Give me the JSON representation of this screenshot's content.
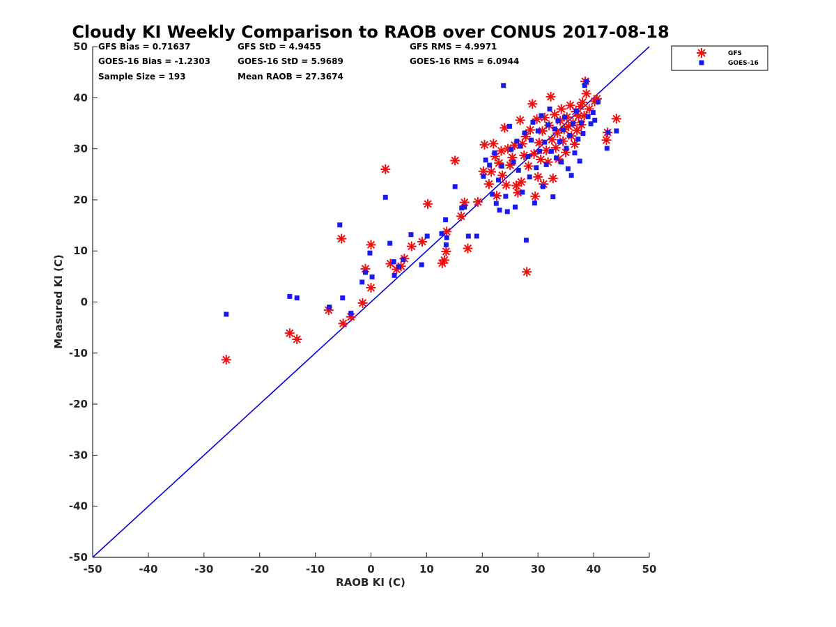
{
  "chart_data": {
    "type": "scatter",
    "title": "Cloudy KI Weekly Comparison to RAOB over CONUS 2017-08-18",
    "xlabel": "RAOB KI (C)",
    "ylabel": "Measured KI (C)",
    "xlim": [
      -50,
      50
    ],
    "ylim": [
      -50,
      50
    ],
    "xticks": [
      -50,
      -40,
      -30,
      -20,
      -10,
      0,
      10,
      20,
      30,
      40,
      50
    ],
    "yticks": [
      -50,
      -40,
      -30,
      -20,
      -10,
      0,
      10,
      20,
      30,
      40,
      50
    ],
    "xtick_labels": [
      "-50",
      "-40",
      "-30",
      "-20",
      "-10",
      "0",
      "10",
      "20",
      "30",
      "40",
      "50"
    ],
    "ytick_labels": [
      "-50",
      "-40",
      "-30",
      "-20",
      "-10",
      "0",
      "10",
      "20",
      "30",
      "40",
      "50"
    ],
    "grid": false,
    "legend_position": "outside top-right",
    "stats": [
      [
        "GFS Bias = 0.71637",
        "GFS StD = 4.9455",
        "GFS RMS = 4.9971"
      ],
      [
        "GOES-16 Bias = -1.2303",
        "GOES-16 StD = 5.9689",
        "GOES-16 RMS = 6.0944"
      ],
      [
        "Sample Size = 193",
        "Mean RAOB = 27.3674",
        ""
      ]
    ],
    "reference_line": {
      "x": [
        -50,
        50
      ],
      "y": [
        -50,
        50
      ],
      "color": "#0000dd"
    },
    "series": [
      {
        "name": "GFS",
        "marker": "asterisk",
        "color": "#ee1111",
        "points": [
          [
            -26,
            -11.3
          ],
          [
            -14.6,
            -6.1
          ],
          [
            -13.3,
            -7.3
          ],
          [
            -7.6,
            -1.6
          ],
          [
            -5.3,
            12.4
          ],
          [
            -5,
            -4.2
          ],
          [
            -3.6,
            -2.9
          ],
          [
            -1.5,
            -0.2
          ],
          [
            -1,
            6.5
          ],
          [
            0,
            11.2
          ],
          [
            0,
            2.8
          ],
          [
            2.6,
            26
          ],
          [
            3.5,
            7.5
          ],
          [
            4.6,
            6.4
          ],
          [
            5.4,
            7
          ],
          [
            6,
            8.5
          ],
          [
            7.3,
            10.9
          ],
          [
            9.2,
            11.8
          ],
          [
            10.2,
            19.2
          ],
          [
            12.8,
            7.6
          ],
          [
            13.2,
            8.2
          ],
          [
            13.5,
            9.9
          ],
          [
            13.6,
            13.8
          ],
          [
            15.1,
            27.7
          ],
          [
            16.2,
            16.8
          ],
          [
            16.8,
            19.5
          ],
          [
            17.4,
            10.5
          ],
          [
            19.2,
            19.6
          ],
          [
            20.2,
            25.6
          ],
          [
            20.4,
            30.8
          ],
          [
            21.2,
            23.1
          ],
          [
            21.6,
            25.5
          ],
          [
            22,
            31
          ],
          [
            22.3,
            28.5
          ],
          [
            22.6,
            20.8
          ],
          [
            23,
            27.2
          ],
          [
            23.4,
            29.6
          ],
          [
            23.6,
            24.8
          ],
          [
            24,
            34.1
          ],
          [
            24.3,
            22.9
          ],
          [
            24.6,
            30
          ],
          [
            25,
            26.8
          ],
          [
            25.4,
            28.3
          ],
          [
            25.8,
            30.7
          ],
          [
            26.1,
            22.8
          ],
          [
            26.4,
            21.4
          ],
          [
            26.8,
            35.6
          ],
          [
            27,
            23.5
          ],
          [
            27.2,
            31
          ],
          [
            27.5,
            28.7
          ],
          [
            27.8,
            32.4
          ],
          [
            28,
            5.9
          ],
          [
            28.3,
            26.6
          ],
          [
            28.6,
            33.7
          ],
          [
            29,
            38.8
          ],
          [
            29.3,
            29
          ],
          [
            29.5,
            20.7
          ],
          [
            29.8,
            35.8
          ],
          [
            30,
            24.5
          ],
          [
            30.2,
            31.2
          ],
          [
            30.5,
            27.9
          ],
          [
            30.8,
            33.5
          ],
          [
            31,
            23.1
          ],
          [
            31.2,
            36.1
          ],
          [
            31.5,
            29.7
          ],
          [
            31.8,
            27.4
          ],
          [
            32,
            34.6
          ],
          [
            32.3,
            40.2
          ],
          [
            32.5,
            31.8
          ],
          [
            32.7,
            24.2
          ],
          [
            33,
            36.7
          ],
          [
            33.2,
            30.2
          ],
          [
            33.5,
            33.1
          ],
          [
            33.7,
            28
          ],
          [
            34,
            35.5
          ],
          [
            34.2,
            37.8
          ],
          [
            34.5,
            31.5
          ],
          [
            34.7,
            33.8
          ],
          [
            35,
            29.3
          ],
          [
            35.2,
            36.2
          ],
          [
            35.5,
            34.4
          ],
          [
            35.8,
            38.5
          ],
          [
            36,
            32.5
          ],
          [
            36.3,
            35.1
          ],
          [
            36.6,
            30.9
          ],
          [
            36.8,
            37.3
          ],
          [
            37,
            33.6
          ],
          [
            37.3,
            36.4
          ],
          [
            37.6,
            38.3
          ],
          [
            37.8,
            34.7
          ],
          [
            38,
            39.1
          ],
          [
            38.3,
            36.5
          ],
          [
            38.5,
            43.2
          ],
          [
            38.7,
            40.8
          ],
          [
            39.2,
            37.8
          ],
          [
            40.2,
            39.3
          ],
          [
            40.6,
            39.8
          ],
          [
            42.3,
            31.7
          ],
          [
            42.5,
            33.2
          ],
          [
            44.1,
            35.9
          ]
        ]
      },
      {
        "name": "GOES-16",
        "marker": "square",
        "color": "#1a1aee",
        "points": [
          [
            -26,
            -2.4
          ],
          [
            -14.6,
            1.1
          ],
          [
            -13.3,
            0.8
          ],
          [
            -7.5,
            -1
          ],
          [
            -5.6,
            15.1
          ],
          [
            -5.1,
            0.8
          ],
          [
            -3.6,
            -2.2
          ],
          [
            -1.6,
            3.9
          ],
          [
            -1,
            5.8
          ],
          [
            -0.2,
            9.6
          ],
          [
            0.2,
            4.9
          ],
          [
            2.6,
            20.5
          ],
          [
            3.4,
            11.5
          ],
          [
            4.1,
            7.9
          ],
          [
            4.2,
            5.2
          ],
          [
            5,
            6.9
          ],
          [
            5.8,
            8.3
          ],
          [
            7.2,
            13.2
          ],
          [
            9.1,
            7.3
          ],
          [
            10.1,
            12.9
          ],
          [
            12.7,
            13.4
          ],
          [
            13.4,
            16.1
          ],
          [
            13.5,
            11.2
          ],
          [
            13.6,
            12.6
          ],
          [
            15.1,
            22.6
          ],
          [
            16.3,
            18.4
          ],
          [
            16.8,
            18.6
          ],
          [
            17.5,
            12.9
          ],
          [
            19,
            12.9
          ],
          [
            20.2,
            24.6
          ],
          [
            20.6,
            27.8
          ],
          [
            21.3,
            26.8
          ],
          [
            21.8,
            21.1
          ],
          [
            22.2,
            29.2
          ],
          [
            22.5,
            19.3
          ],
          [
            22.9,
            23.9
          ],
          [
            23.1,
            18
          ],
          [
            23.5,
            26.6
          ],
          [
            23.8,
            42.4
          ],
          [
            24.2,
            20.7
          ],
          [
            24.5,
            17.7
          ],
          [
            24.9,
            34.4
          ],
          [
            25.2,
            29.9
          ],
          [
            25.6,
            27.4
          ],
          [
            25.9,
            18.6
          ],
          [
            26.2,
            31.5
          ],
          [
            26.5,
            25.8
          ],
          [
            26.8,
            30.5
          ],
          [
            27.2,
            21.5
          ],
          [
            27.6,
            33.1
          ],
          [
            27.9,
            12.1
          ],
          [
            28.2,
            28.5
          ],
          [
            28.5,
            24.5
          ],
          [
            28.8,
            31.7
          ],
          [
            29.1,
            35.2
          ],
          [
            29.4,
            19.4
          ],
          [
            29.7,
            26.3
          ],
          [
            30,
            33.5
          ],
          [
            30.3,
            29.5
          ],
          [
            30.6,
            36.5
          ],
          [
            30.9,
            22.6
          ],
          [
            31.2,
            31.3
          ],
          [
            31.5,
            26.9
          ],
          [
            31.8,
            34.7
          ],
          [
            32.1,
            37.8
          ],
          [
            32.4,
            29.5
          ],
          [
            32.7,
            20.6
          ],
          [
            33,
            33.9
          ],
          [
            33.3,
            28.2
          ],
          [
            33.6,
            35.5
          ],
          [
            33.9,
            31.4
          ],
          [
            34.2,
            27.4
          ],
          [
            34.5,
            33.7
          ],
          [
            34.8,
            36.2
          ],
          [
            35.1,
            30.1
          ],
          [
            35.4,
            26.1
          ],
          [
            35.7,
            32.6
          ],
          [
            36,
            24.8
          ],
          [
            36.3,
            34.9
          ],
          [
            36.6,
            29.2
          ],
          [
            36.9,
            37.4
          ],
          [
            37.2,
            31.9
          ],
          [
            37.5,
            27.6
          ],
          [
            37.8,
            35.1
          ],
          [
            38.1,
            33
          ],
          [
            38.4,
            42.4
          ],
          [
            38.7,
            43.2
          ],
          [
            39,
            36.3
          ],
          [
            39.5,
            34.9
          ],
          [
            39.9,
            37.1
          ],
          [
            40.2,
            35.6
          ],
          [
            40.8,
            39.2
          ],
          [
            42.4,
            30.1
          ],
          [
            42.6,
            33.2
          ],
          [
            44.1,
            33.5
          ]
        ]
      }
    ]
  }
}
